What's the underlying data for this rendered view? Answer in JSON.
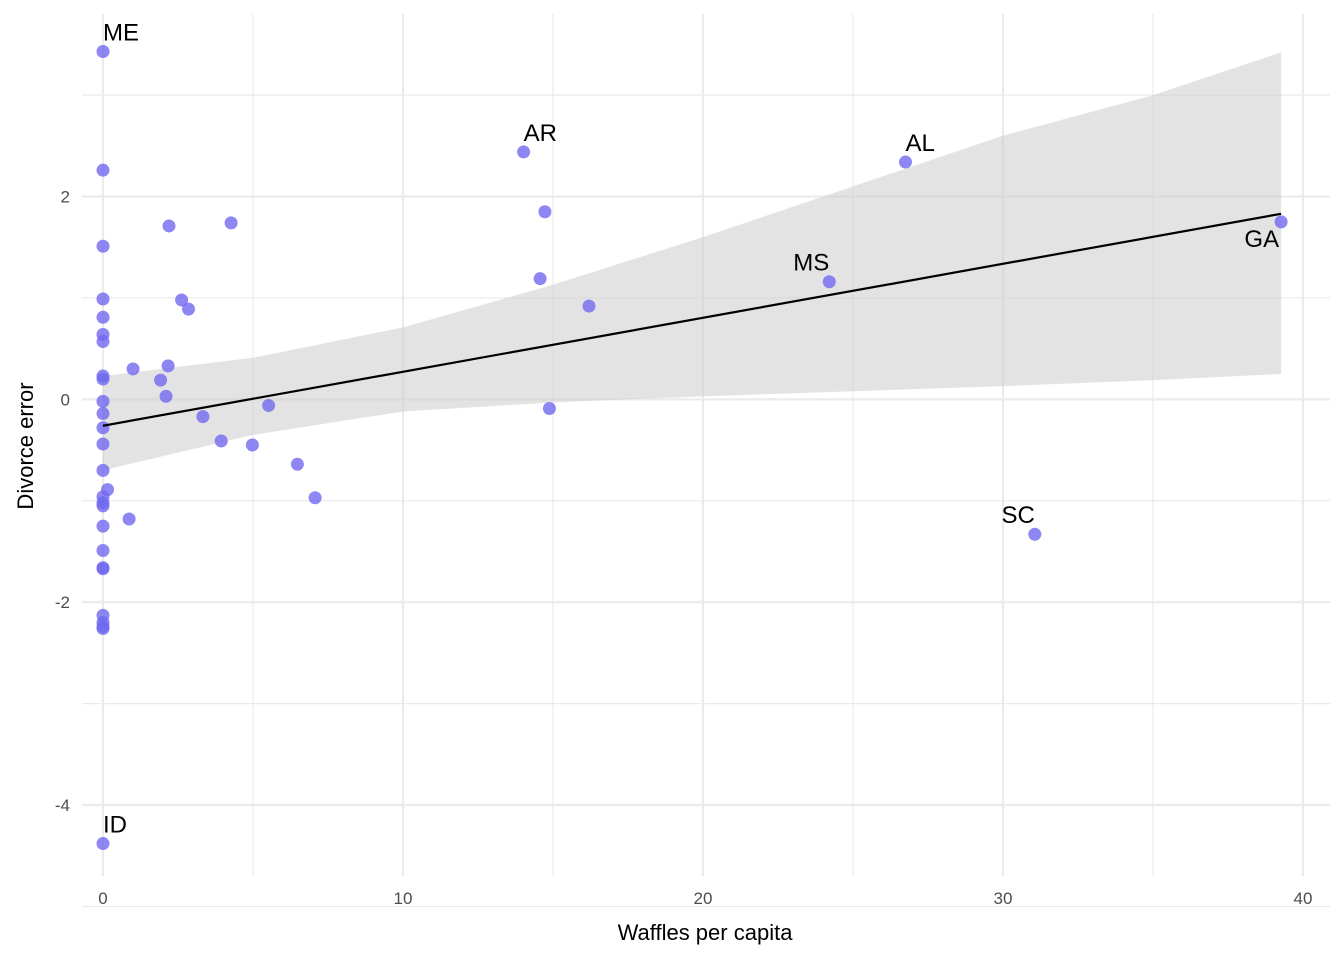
{
  "chart_data": {
    "type": "scatter",
    "title": "",
    "xlabel": "Waffles per capita",
    "ylabel": "Divorce error",
    "xlim": [
      -0.7,
      40.9
    ],
    "ylim": [
      -4.7,
      3.8
    ],
    "x_ticks": [
      0,
      10,
      20,
      30,
      40
    ],
    "x_tick_labels": [
      "0",
      "10",
      "20",
      "30",
      "40"
    ],
    "y_ticks": [
      -4,
      -2,
      0,
      2
    ],
    "y_tick_labels": [
      "-4",
      "-2",
      "0",
      "2"
    ],
    "grid": true,
    "legend": "none",
    "colors": {
      "points": "#7068f0",
      "fit_line": "#000000",
      "ribbon": "#cccccc",
      "grid": "#ebebeb"
    },
    "points": [
      {
        "x": 0,
        "y": 3.43
      },
      {
        "x": 0,
        "y": 2.26
      },
      {
        "x": 0,
        "y": 1.51
      },
      {
        "x": 0,
        "y": 0.99
      },
      {
        "x": 0,
        "y": 0.81
      },
      {
        "x": 0,
        "y": 0.64
      },
      {
        "x": 0,
        "y": 0.57
      },
      {
        "x": 0,
        "y": 0.23
      },
      {
        "x": 0,
        "y": 0.2
      },
      {
        "x": 0,
        "y": -0.02
      },
      {
        "x": 0,
        "y": -0.14
      },
      {
        "x": 0,
        "y": -0.28
      },
      {
        "x": 0,
        "y": -0.44
      },
      {
        "x": 0,
        "y": -0.7
      },
      {
        "x": 0,
        "y": -0.96
      },
      {
        "x": 0,
        "y": -1.02
      },
      {
        "x": 0,
        "y": -1.05
      },
      {
        "x": 0,
        "y": -1.25
      },
      {
        "x": 0,
        "y": -1.49
      },
      {
        "x": 0,
        "y": -1.66
      },
      {
        "x": 0,
        "y": -1.67
      },
      {
        "x": 0,
        "y": -2.13
      },
      {
        "x": 0,
        "y": -2.2
      },
      {
        "x": 0,
        "y": -2.24
      },
      {
        "x": 0,
        "y": -2.26
      },
      {
        "x": 0,
        "y": -4.38
      },
      {
        "x": 0.15,
        "y": -0.89
      },
      {
        "x": 0.87,
        "y": -1.18
      },
      {
        "x": 1,
        "y": 0.3
      },
      {
        "x": 1.92,
        "y": 0.19
      },
      {
        "x": 2.1,
        "y": 0.03
      },
      {
        "x": 2.17,
        "y": 0.33
      },
      {
        "x": 2.2,
        "y": 1.71
      },
      {
        "x": 2.62,
        "y": 0.98
      },
      {
        "x": 2.85,
        "y": 0.89
      },
      {
        "x": 3.33,
        "y": -0.17
      },
      {
        "x": 3.94,
        "y": -0.41
      },
      {
        "x": 4.27,
        "y": 1.74
      },
      {
        "x": 4.98,
        "y": -0.45
      },
      {
        "x": 5.52,
        "y": -0.06
      },
      {
        "x": 6.48,
        "y": -0.64
      },
      {
        "x": 7.07,
        "y": -0.97
      },
      {
        "x": 14.02,
        "y": 2.44
      },
      {
        "x": 14.57,
        "y": 1.19
      },
      {
        "x": 14.73,
        "y": 1.85
      },
      {
        "x": 14.88,
        "y": -0.09
      },
      {
        "x": 16.2,
        "y": 0.92
      },
      {
        "x": 24.21,
        "y": 1.16
      },
      {
        "x": 26.75,
        "y": 2.34
      },
      {
        "x": 31.06,
        "y": -1.33
      },
      {
        "x": 39.27,
        "y": 1.75
      }
    ],
    "labels": [
      {
        "text": "ME",
        "x": 0,
        "y": 3.43
      },
      {
        "text": "AR",
        "x": 14.02,
        "y": 2.44
      },
      {
        "text": "AL",
        "x": 26.75,
        "y": 2.34
      },
      {
        "text": "MS",
        "x": 24.21,
        "y": 1.16
      },
      {
        "text": "GA",
        "x": 39.27,
        "y": 1.75
      },
      {
        "text": "SC",
        "x": 31.06,
        "y": -1.33
      },
      {
        "text": "ID",
        "x": 0,
        "y": -4.38
      }
    ],
    "fit_line": {
      "x": [
        0,
        39.27
      ],
      "y": [
        -0.26,
        1.83
      ]
    },
    "ribbon": {
      "x": [
        0,
        5,
        10,
        15,
        20,
        25,
        30,
        35,
        39.27
      ],
      "upper": [
        0.23,
        0.41,
        0.71,
        1.13,
        1.6,
        2.1,
        2.6,
        3.0,
        3.42
      ],
      "lower": [
        -0.7,
        -0.35,
        -0.12,
        -0.03,
        0.03,
        0.08,
        0.13,
        0.19,
        0.25
      ]
    }
  }
}
